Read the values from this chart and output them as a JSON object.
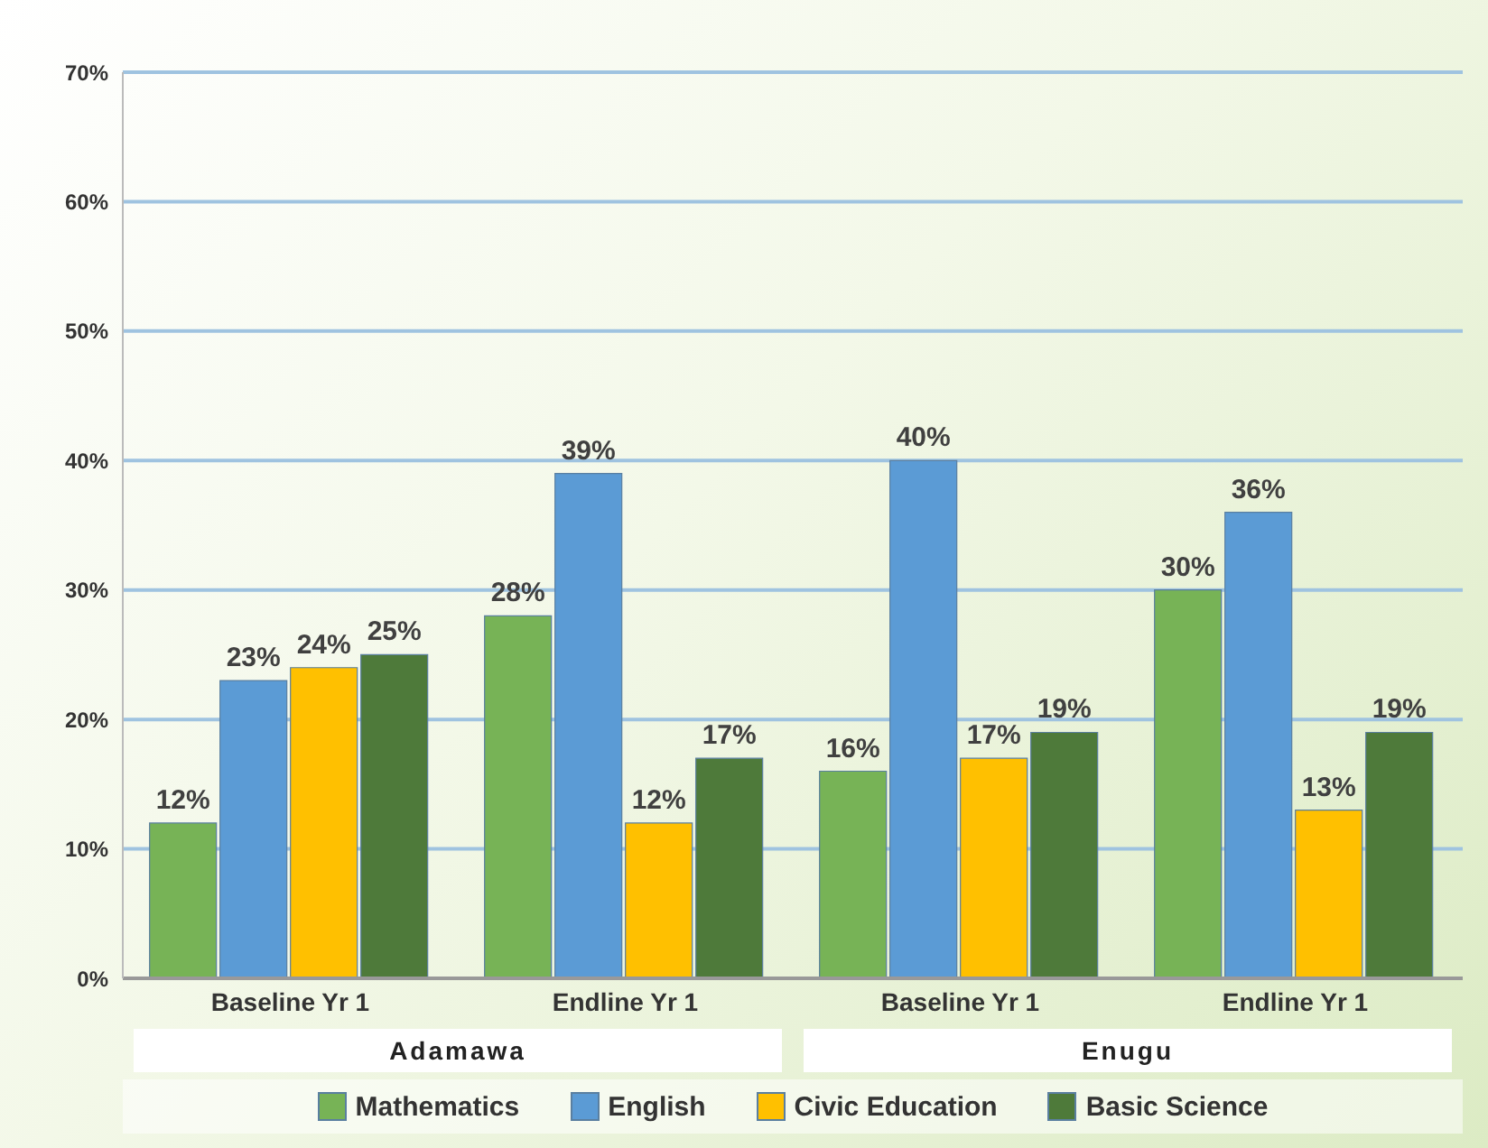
{
  "chart_data": {
    "type": "bar",
    "categories": [
      "Baseline Yr 1",
      "Endline Yr 1",
      "Baseline Yr 1",
      "Endline Yr 1"
    ],
    "annotations": [
      "Adamawa",
      "Enugu"
    ],
    "series": [
      {
        "name": "Mathematics",
        "color": "#77b356",
        "values": [
          12,
          28,
          16,
          30
        ],
        "value_labels": [
          "12%",
          "28%",
          "16%",
          "30%"
        ]
      },
      {
        "name": "English",
        "color": "#5b9bd5",
        "values": [
          23,
          39,
          40,
          36
        ],
        "value_labels": [
          "23%",
          "39%",
          "40%",
          "36%"
        ]
      },
      {
        "name": "Civic Education",
        "color": "#ffc000",
        "values": [
          24,
          12,
          17,
          13
        ],
        "value_labels": [
          "24%",
          "12%",
          "17%",
          "13%"
        ]
      },
      {
        "name": "Basic Science",
        "color": "#4e7a3a",
        "values": [
          25,
          17,
          19,
          19
        ],
        "value_labels": [
          "25%",
          "17%",
          "19%",
          "19%"
        ]
      }
    ],
    "ylim": [
      0,
      70
    ],
    "yticks": [
      {
        "value": 0,
        "label": "0%"
      },
      {
        "value": 10,
        "label": "10%"
      },
      {
        "value": 20,
        "label": "20%"
      },
      {
        "value": 30,
        "label": "30%"
      },
      {
        "value": 40,
        "label": "40%"
      },
      {
        "value": 50,
        "label": "50%"
      },
      {
        "value": 60,
        "label": "60%"
      },
      {
        "value": 70,
        "label": "70%"
      }
    ],
    "grid": "y",
    "legend": "bottom"
  }
}
